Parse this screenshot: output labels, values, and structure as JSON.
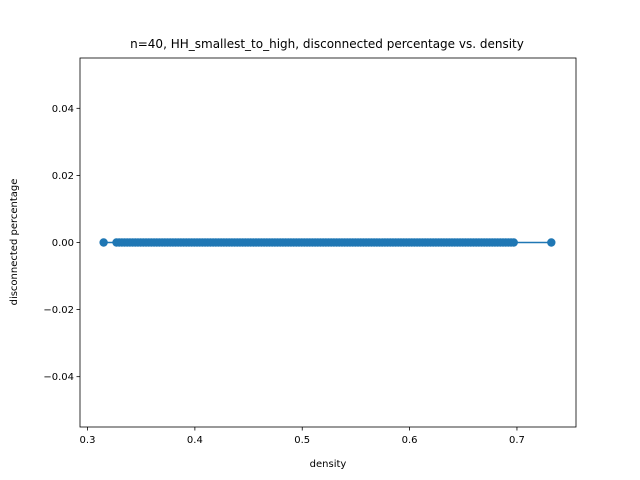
{
  "chart_data": {
    "type": "line",
    "title": "n=40, HH_smallest_to_high, disconnected percentage vs. density",
    "xlabel": "density",
    "ylabel": "disconnected percentage",
    "xlim": [
      0.293,
      0.755
    ],
    "ylim": [
      -0.055,
      0.055
    ],
    "xticks": [
      0.3,
      0.4,
      0.5,
      0.6,
      0.7
    ],
    "xtick_labels": [
      "0.3",
      "0.4",
      "0.5",
      "0.6",
      "0.7"
    ],
    "yticks": [
      -0.04,
      -0.02,
      0.0,
      0.02,
      0.04
    ],
    "ytick_labels": [
      "−0.04",
      "−0.02",
      "0.00",
      "0.02",
      "0.04"
    ],
    "grid": false,
    "legend": "none",
    "series": [
      {
        "color": "#1f77b4",
        "marker": "circle",
        "x_dense_range": [
          0.327,
          0.697
        ],
        "x_dense_step": 0.0025,
        "x_extra": [
          0.315,
          0.732
        ],
        "y_constant": 0.0
      }
    ]
  }
}
